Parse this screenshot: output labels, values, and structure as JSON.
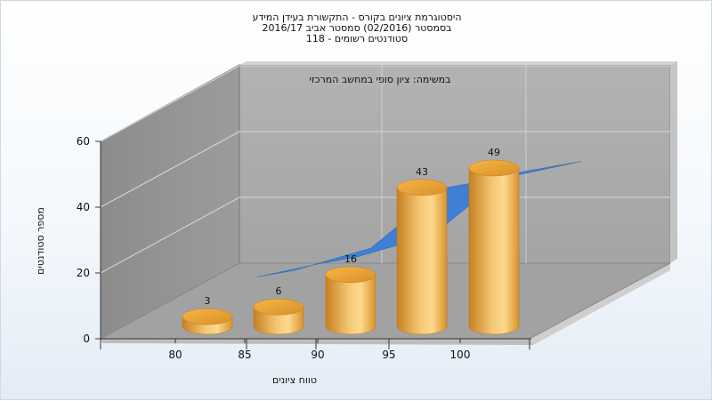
{
  "chart_data": {
    "type": "bar",
    "title_lines": [
      "היסטוגרמת ציונים בקורס - התקשורת בעידן המידע",
      "בסמסטר  (02/2016)  סמסטר אביב 2016/17",
      "סטודנטים רשומים - 118"
    ],
    "annotation": "במשימה: ציון סופי במחשב המרכזי",
    "xlabel": "טווח ציונים",
    "ylabel": "מספר סטודנטים",
    "x_ticks": [
      "80",
      "85",
      "90",
      "95",
      "100"
    ],
    "y_ticks": [
      "0",
      "20",
      "40",
      "60"
    ],
    "ylim": [
      0,
      60
    ],
    "series": [
      {
        "type": "bar-3d-cylinder",
        "values": [
          3,
          6,
          16,
          43,
          49
        ]
      },
      {
        "type": "area-3d-ribbon",
        "values": [
          3,
          6,
          16,
          43,
          49
        ]
      }
    ],
    "grid": true,
    "colors": {
      "bars": "#f0a832",
      "ribbon": "#3f7fd6",
      "walls": "#a9a9a9",
      "floor": "#a0a0a0"
    }
  }
}
